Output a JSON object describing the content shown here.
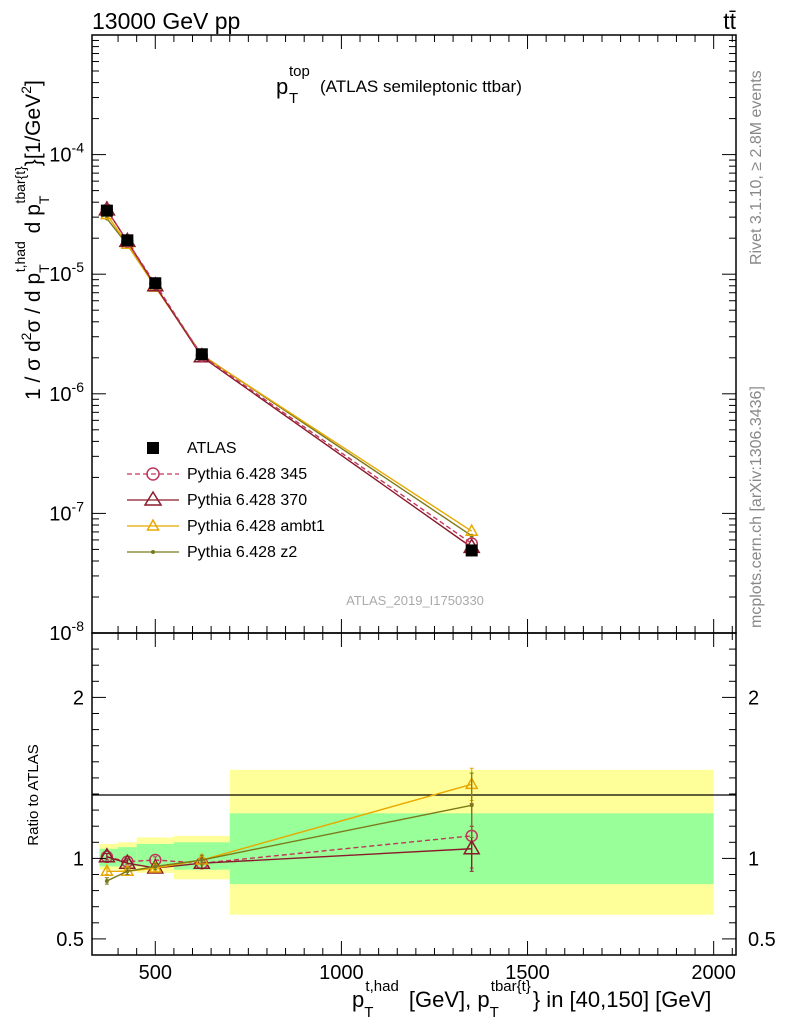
{
  "header": {
    "left": "13000 GeV pp",
    "right": "tt̄"
  },
  "side_labels": {
    "rivet": "Rivet 3.1.10, ≥ 2.8M events",
    "mcplots": "mcplots.cern.ch [arXiv:1306.3436]"
  },
  "chart_data": [
    {
      "type": "line",
      "title_main": "p",
      "title_sup": "top",
      "title_sub": "T",
      "title_rest": "(ATLAS semileptonic ttbar)",
      "watermark": "ATLAS_2019_I1750330",
      "ylabel": "1 / σ d²σ / d p_T^{t,had} d p_T^{tbar{t}} [1/GeV²]",
      "yscale": "log",
      "ylim": [
        1e-08,
        0.001
      ],
      "xlim": [
        330,
        2060
      ],
      "y_tick_labels": [
        "10^-8",
        "10^-7",
        "10^-6",
        "10^-5",
        "10^-4"
      ],
      "legend_position": "center-left",
      "x": [
        370,
        425,
        500,
        625,
        1350
      ],
      "series": [
        {
          "name": "ATLAS",
          "color": "#000000",
          "marker": "square",
          "values": [
            3.4e-05,
            1.92e-05,
            8.4e-06,
            2.14e-06,
            4.9e-08
          ]
        },
        {
          "name": "Pythia 6.428 345",
          "color": "#c0365b",
          "marker": "open-circle",
          "dashed": true,
          "values": [
            3.45e-05,
            1.88e-05,
            8.3e-06,
            2.08e-06,
            5.6e-08
          ]
        },
        {
          "name": "Pythia 6.428 370",
          "color": "#8b1a2b",
          "marker": "open-triangle",
          "values": [
            3.45e-05,
            1.88e-05,
            8e-06,
            2.04e-06,
            5.2e-08
          ]
        },
        {
          "name": "Pythia 6.428 ambt1",
          "color": "#e8a800",
          "marker": "open-triangle-small",
          "values": [
            3.15e-05,
            1.78e-05,
            7.8e-06,
            2.1e-06,
            7.1e-08
          ]
        },
        {
          "name": "Pythia 6.428 z2",
          "color": "#7a7a1a",
          "marker": "dot",
          "values": [
            2.92e-05,
            1.76e-05,
            7.9e-06,
            2.12e-06,
            6.5e-08
          ]
        }
      ]
    },
    {
      "type": "line",
      "ylabel": "Ratio to ATLAS",
      "ylim": [
        0.4,
        2.4
      ],
      "xlim": [
        330,
        2060
      ],
      "xlabel": "p_T^{t,had} [GeV], p_T^{tbar{t}} in [40,150] [GeV]",
      "x_tick_labels": [
        "500",
        "1000",
        "1500",
        "2000"
      ],
      "y_tick_labels": [
        "0.5",
        "1",
        "2"
      ],
      "bands": {
        "edges": [
          350,
          400,
          450,
          550,
          700,
          2000
        ],
        "green": [
          [
            0.95,
            1.06
          ],
          [
            0.95,
            1.07
          ],
          [
            0.95,
            1.09
          ],
          [
            0.93,
            1.1
          ],
          [
            0.84,
            1.28
          ]
        ],
        "yellow": [
          [
            0.93,
            1.09
          ],
          [
            0.92,
            1.1
          ],
          [
            0.91,
            1.13
          ],
          [
            0.87,
            1.14
          ],
          [
            0.65,
            1.55
          ]
        ]
      },
      "x": [
        370,
        425,
        500,
        625,
        1350
      ],
      "series": [
        {
          "name": "Pythia 6.428 345",
          "color": "#c0365b",
          "values": [
            1.01,
            0.98,
            0.99,
            0.97,
            1.14
          ],
          "err": [
            0.02,
            0.02,
            0.02,
            0.03,
            0.2
          ]
        },
        {
          "name": "Pythia 6.428 370",
          "color": "#8b1a2b",
          "values": [
            1.01,
            0.97,
            0.94,
            0.97,
            1.06
          ],
          "err": [
            0.02,
            0.02,
            0.02,
            0.03,
            0.14
          ]
        },
        {
          "name": "Pythia 6.428 ambt1",
          "color": "#e8a800",
          "values": [
            0.92,
            0.92,
            0.94,
            0.99,
            1.46
          ],
          "err": [
            0.02,
            0.02,
            0.02,
            0.03,
            0.1
          ]
        },
        {
          "name": "Pythia 6.428 z2",
          "color": "#7a7a1a",
          "values": [
            0.86,
            0.92,
            0.95,
            0.99,
            1.33
          ],
          "err": [
            0.02,
            0.02,
            0.02,
            0.03,
            0.2
          ]
        }
      ]
    }
  ]
}
